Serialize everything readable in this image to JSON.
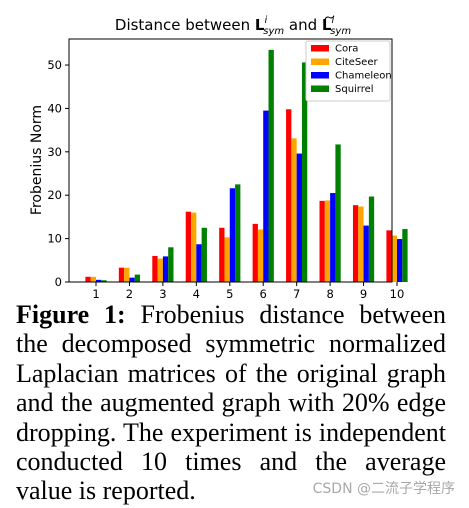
{
  "chart_data": {
    "type": "bar",
    "title": {
      "prefix": "Distance between ",
      "mid": " and ",
      "symbol_1": "L",
      "symbol_1_sup": "i",
      "symbol_1_sub": "sym",
      "symbol_2": "L",
      "symbol_2_sup": "i",
      "symbol_2_sub": "sym"
    },
    "xlabel": "",
    "ylabel": "Frobenius Norm",
    "categories": [
      "1",
      "2",
      "3",
      "4",
      "5",
      "6",
      "7",
      "8",
      "9",
      "10"
    ],
    "ylim": [
      0,
      56
    ],
    "yticks": [
      0,
      10,
      20,
      30,
      40,
      50
    ],
    "grid": false,
    "legend_position": "top-right",
    "series": [
      {
        "name": "Cora",
        "color": "#ff0000",
        "values": [
          1.2,
          3.3,
          6.0,
          16.2,
          12.5,
          13.4,
          39.8,
          18.7,
          17.7,
          11.9
        ]
      },
      {
        "name": "CiteSeer",
        "color": "#ffa500",
        "values": [
          1.2,
          3.3,
          5.4,
          16.0,
          10.3,
          12.1,
          33.1,
          18.8,
          17.4,
          10.7
        ]
      },
      {
        "name": "Chameleon",
        "color": "#0000ff",
        "values": [
          0.5,
          1.0,
          5.9,
          8.7,
          21.6,
          39.5,
          29.6,
          20.5,
          13.0,
          9.9
        ]
      },
      {
        "name": "Squirrel",
        "color": "#008000",
        "values": [
          0.4,
          1.7,
          8.0,
          12.5,
          22.5,
          53.5,
          50.6,
          31.7,
          19.7,
          12.2
        ]
      }
    ]
  },
  "caption": {
    "label": "Figure 1:",
    "text": " Frobenius distance between the decomposed symmetric normalized Laplacian matrices of the original graph and the augmented graph with 20% edge dropping. The experiment is indepen­dent conducted 10 times and the average value is reported."
  },
  "watermark": "CSDN @二流子学程序"
}
